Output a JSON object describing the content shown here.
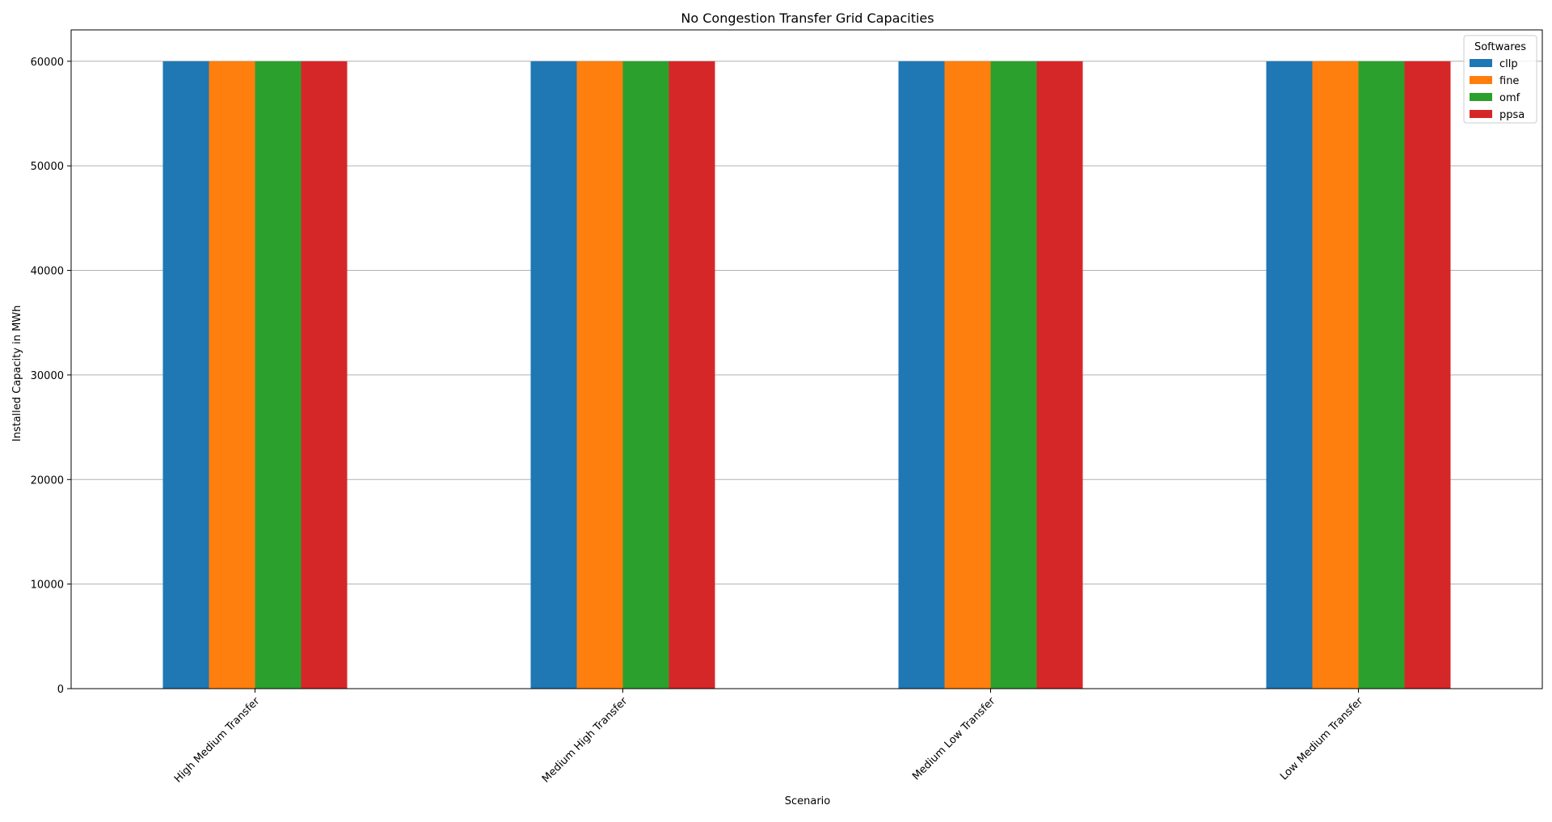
{
  "chart_data": {
    "type": "bar",
    "title": "No Congestion Transfer Grid Capacities",
    "xlabel": "Scenario",
    "ylabel": "Installed Capacity in MWh",
    "categories": [
      "High Medium Transfer",
      "Medium High Transfer",
      "Medium Low Transfer",
      "Low Medium Transfer"
    ],
    "series": [
      {
        "name": "cllp",
        "color": "#1f77b4",
        "values": [
          60000,
          60000,
          60000,
          60000
        ]
      },
      {
        "name": "fine",
        "color": "#ff7f0e",
        "values": [
          60000,
          60000,
          60000,
          60000
        ]
      },
      {
        "name": "omf",
        "color": "#2ca02c",
        "values": [
          60000,
          60000,
          60000,
          60000
        ]
      },
      {
        "name": "ppsa",
        "color": "#d62728",
        "values": [
          60000,
          60000,
          60000,
          60000
        ]
      }
    ],
    "ylim": [
      0,
      63000
    ],
    "yticks": [
      0,
      10000,
      20000,
      30000,
      40000,
      50000,
      60000
    ],
    "grid": "horizontal",
    "legend": {
      "title": "Softwares",
      "placement": "top-right"
    }
  }
}
